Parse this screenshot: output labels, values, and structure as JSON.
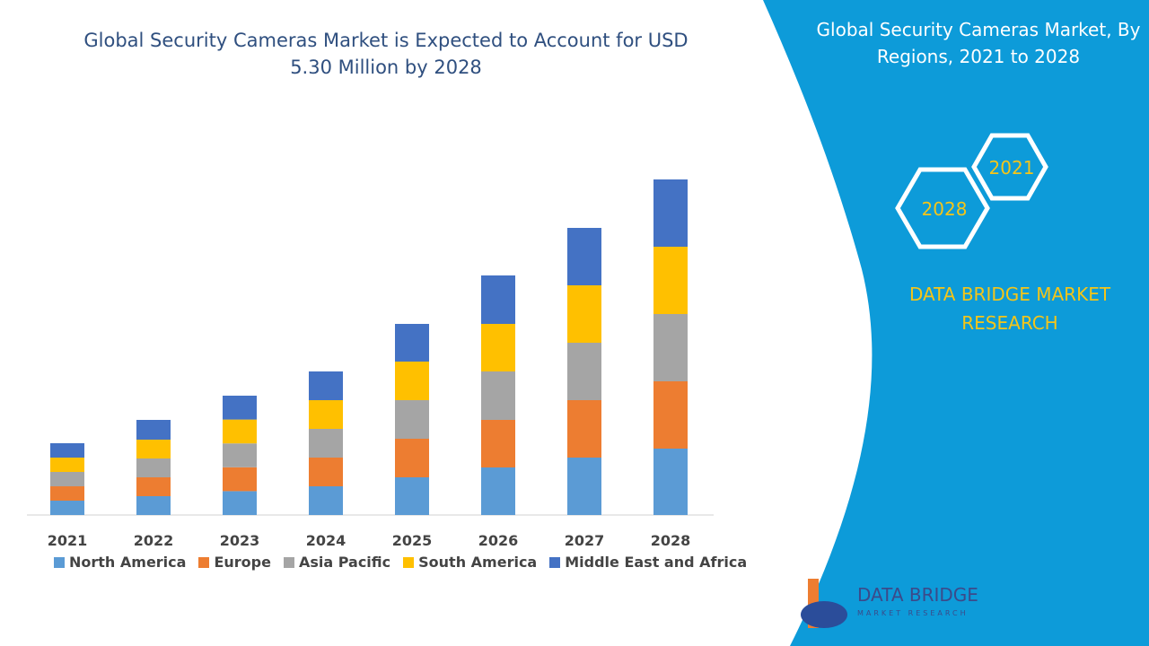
{
  "chart_data": {
    "type": "stacked-bar",
    "title": "Global Security Cameras Market is Expected to Account for USD 5.30 Million by 2028",
    "categories": [
      "2021",
      "2022",
      "2023",
      "2024",
      "2025",
      "2026",
      "2027",
      "2028"
    ],
    "series": [
      {
        "name": "North America",
        "color": "#5b9bd5",
        "values": [
          16,
          21,
          26.6,
          32,
          42,
          53,
          64,
          74
        ]
      },
      {
        "name": "Europe",
        "color": "#ed7d31",
        "values": [
          16,
          21,
          26.6,
          32,
          43,
          53,
          64,
          75
        ]
      },
      {
        "name": "Asia Pacific",
        "color": "#a5a5a5",
        "values": [
          16,
          21,
          26.6,
          32,
          43,
          54,
          64,
          75
        ]
      },
      {
        "name": "South America",
        "color": "#ffc000",
        "values": [
          16,
          21,
          26.6,
          32,
          43,
          53,
          64,
          75
        ]
      },
      {
        "name": "Middle East and Africa",
        "color": "#4472c4",
        "values": [
          16,
          22,
          26.6,
          32,
          42,
          54,
          64,
          75
        ]
      }
    ]
  },
  "panel": {
    "title": "Global Security Cameras Market, By Regions, 2021 to 2028",
    "hexagons": [
      "2021",
      "2028"
    ],
    "brand": "DATA BRIDGE MARKET RESEARCH"
  },
  "logo": {
    "name": "DATA BRIDGE",
    "tagline": "MARKET RESEARCH"
  }
}
